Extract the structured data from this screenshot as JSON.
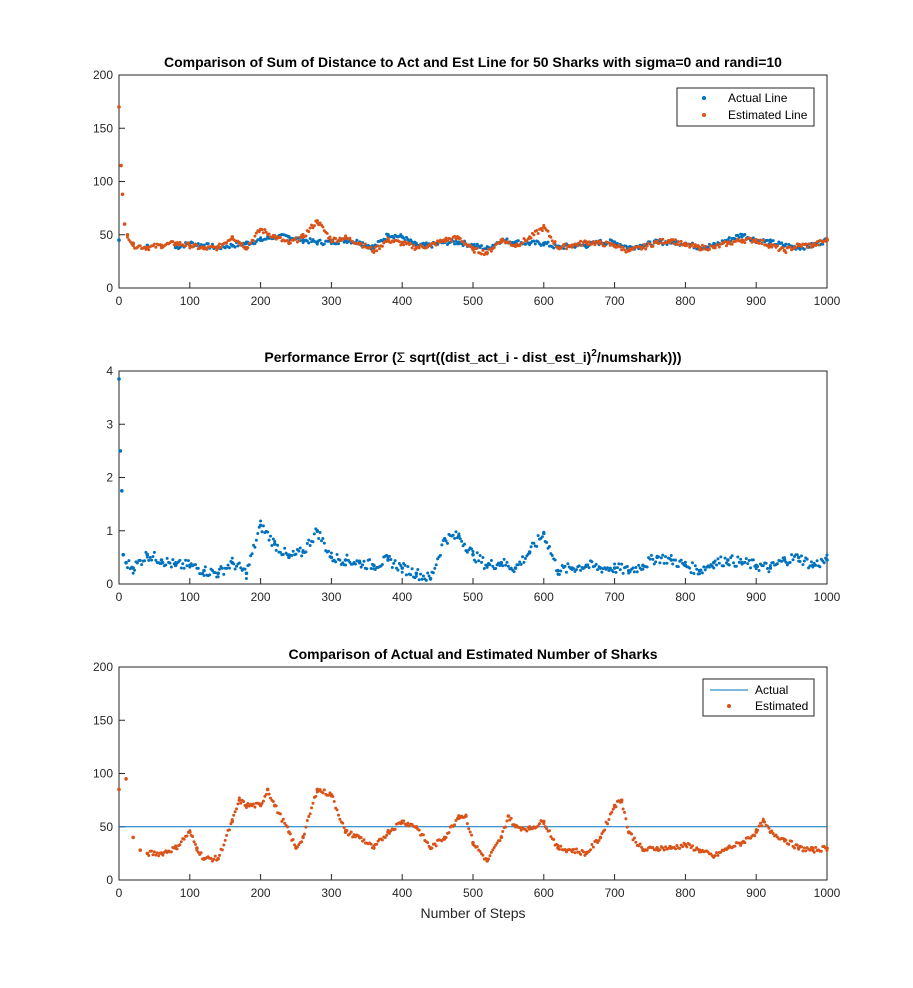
{
  "chart_data": [
    {
      "type": "scatter",
      "title": "Comparison of Sum of Distance to Act and Est Line for 50 Sharks with sigma=0 and randi=10",
      "xlim": [
        0,
        1000
      ],
      "ylim": [
        0,
        200
      ],
      "x_ticks": [
        "0",
        "100",
        "200",
        "300",
        "400",
        "500",
        "600",
        "700",
        "800",
        "900",
        "1000"
      ],
      "y_ticks": [
        "0",
        "50",
        "100",
        "150",
        "200"
      ],
      "legend": "top-right",
      "series": [
        {
          "name": "Actual Line",
          "color": "#0072BD",
          "points": [
            [
              0,
              45
            ],
            [
              20,
              42
            ],
            [
              40,
              40
            ],
            [
              60,
              40
            ],
            [
              80,
              38
            ],
            [
              100,
              42
            ],
            [
              120,
              40
            ],
            [
              140,
              38
            ],
            [
              160,
              40
            ],
            [
              180,
              42
            ],
            [
              200,
              45
            ],
            [
              220,
              48
            ],
            [
              240,
              48
            ],
            [
              260,
              45
            ],
            [
              280,
              43
            ],
            [
              300,
              43
            ],
            [
              320,
              45
            ],
            [
              340,
              43
            ],
            [
              360,
              38
            ],
            [
              380,
              50
            ],
            [
              400,
              48
            ],
            [
              420,
              40
            ],
            [
              440,
              40
            ],
            [
              460,
              43
            ],
            [
              480,
              43
            ],
            [
              500,
              40
            ],
            [
              520,
              37
            ],
            [
              540,
              45
            ],
            [
              560,
              43
            ],
            [
              580,
              42
            ],
            [
              600,
              42
            ],
            [
              620,
              38
            ],
            [
              640,
              40
            ],
            [
              660,
              40
            ],
            [
              680,
              43
            ],
            [
              700,
              43
            ],
            [
              720,
              38
            ],
            [
              740,
              40
            ],
            [
              760,
              43
            ],
            [
              780,
              43
            ],
            [
              800,
              42
            ],
            [
              820,
              38
            ],
            [
              840,
              40
            ],
            [
              860,
              45
            ],
            [
              880,
              50
            ],
            [
              900,
              45
            ],
            [
              920,
              43
            ],
            [
              940,
              40
            ],
            [
              960,
              38
            ],
            [
              980,
              40
            ],
            [
              1000,
              45
            ]
          ]
        },
        {
          "name": "Estimated Line",
          "color": "#D95319",
          "points": [
            [
              0,
              170
            ],
            [
              3,
              115
            ],
            [
              5,
              88
            ],
            [
              8,
              60
            ],
            [
              12,
              50
            ],
            [
              20,
              40
            ],
            [
              40,
              38
            ],
            [
              60,
              40
            ],
            [
              80,
              42
            ],
            [
              100,
              40
            ],
            [
              120,
              37
            ],
            [
              140,
              38
            ],
            [
              160,
              48
            ],
            [
              180,
              38
            ],
            [
              200,
              55
            ],
            [
              220,
              48
            ],
            [
              240,
              42
            ],
            [
              260,
              48
            ],
            [
              280,
              63
            ],
            [
              300,
              45
            ],
            [
              320,
              47
            ],
            [
              340,
              42
            ],
            [
              360,
              35
            ],
            [
              380,
              45
            ],
            [
              400,
              42
            ],
            [
              420,
              38
            ],
            [
              440,
              40
            ],
            [
              460,
              45
            ],
            [
              480,
              47
            ],
            [
              500,
              36
            ],
            [
              520,
              33
            ],
            [
              540,
              45
            ],
            [
              560,
              40
            ],
            [
              580,
              47
            ],
            [
              600,
              57
            ],
            [
              620,
              38
            ],
            [
              640,
              40
            ],
            [
              660,
              43
            ],
            [
              680,
              42
            ],
            [
              700,
              40
            ],
            [
              720,
              35
            ],
            [
              740,
              38
            ],
            [
              760,
              43
            ],
            [
              780,
              45
            ],
            [
              800,
              40
            ],
            [
              820,
              38
            ],
            [
              840,
              38
            ],
            [
              860,
              42
            ],
            [
              880,
              45
            ],
            [
              900,
              45
            ],
            [
              920,
              40
            ],
            [
              940,
              35
            ],
            [
              960,
              40
            ],
            [
              980,
              40
            ],
            [
              1000,
              45
            ]
          ]
        }
      ]
    },
    {
      "type": "scatter",
      "title_parts": [
        "Performance Error (",
        "Σ",
        " sqrt((dist_act_i - dist_est_i)",
        "2",
        "/numshark)))"
      ],
      "xlim": [
        0,
        1000
      ],
      "ylim": [
        0,
        4
      ],
      "x_ticks": [
        "0",
        "100",
        "200",
        "300",
        "400",
        "500",
        "600",
        "700",
        "800",
        "900",
        "1000"
      ],
      "y_ticks": [
        "0",
        "1",
        "2",
        "3",
        "4"
      ],
      "series": [
        {
          "color": "#0072BD",
          "points": [
            [
              0,
              3.85
            ],
            [
              2,
              2.5
            ],
            [
              4,
              1.75
            ],
            [
              6,
              0.55
            ],
            [
              10,
              0.4
            ],
            [
              20,
              0.3
            ],
            [
              40,
              0.55
            ],
            [
              60,
              0.45
            ],
            [
              80,
              0.35
            ],
            [
              100,
              0.35
            ],
            [
              120,
              0.25
            ],
            [
              140,
              0.2
            ],
            [
              160,
              0.4
            ],
            [
              180,
              0.2
            ],
            [
              200,
              1.1
            ],
            [
              220,
              0.75
            ],
            [
              240,
              0.5
            ],
            [
              260,
              0.6
            ],
            [
              280,
              1.0
            ],
            [
              300,
              0.5
            ],
            [
              320,
              0.45
            ],
            [
              340,
              0.4
            ],
            [
              360,
              0.35
            ],
            [
              380,
              0.45
            ],
            [
              400,
              0.3
            ],
            [
              420,
              0.2
            ],
            [
              440,
              0.1
            ],
            [
              460,
              0.85
            ],
            [
              480,
              0.9
            ],
            [
              500,
              0.55
            ],
            [
              520,
              0.35
            ],
            [
              540,
              0.4
            ],
            [
              560,
              0.3
            ],
            [
              580,
              0.6
            ],
            [
              600,
              0.95
            ],
            [
              620,
              0.25
            ],
            [
              640,
              0.3
            ],
            [
              660,
              0.35
            ],
            [
              680,
              0.3
            ],
            [
              700,
              0.3
            ],
            [
              720,
              0.25
            ],
            [
              740,
              0.35
            ],
            [
              760,
              0.5
            ],
            [
              780,
              0.45
            ],
            [
              800,
              0.35
            ],
            [
              820,
              0.25
            ],
            [
              840,
              0.4
            ],
            [
              860,
              0.45
            ],
            [
              880,
              0.4
            ],
            [
              900,
              0.35
            ],
            [
              920,
              0.3
            ],
            [
              940,
              0.45
            ],
            [
              960,
              0.5
            ],
            [
              980,
              0.35
            ],
            [
              1000,
              0.45
            ]
          ]
        }
      ]
    },
    {
      "type": "scatter",
      "title": "Comparison of Actual and Estimated Number of Sharks",
      "xlabel": "Number of Steps",
      "xlim": [
        0,
        1000
      ],
      "ylim": [
        0,
        200
      ],
      "x_ticks": [
        "0",
        "100",
        "200",
        "300",
        "400",
        "500",
        "600",
        "700",
        "800",
        "900",
        "1000"
      ],
      "y_ticks": [
        "0",
        "50",
        "100",
        "150",
        "200"
      ],
      "legend": "top-right",
      "series": [
        {
          "name": "Actual",
          "color": "#0072BD",
          "style": "line",
          "points": [
            [
              0,
              50
            ],
            [
              1000,
              50
            ]
          ]
        },
        {
          "name": "Estimated",
          "color": "#D95319",
          "style": "dots",
          "points": [
            [
              0,
              85
            ],
            [
              10,
              95
            ],
            [
              20,
              40
            ],
            [
              30,
              28
            ],
            [
              40,
              25
            ],
            [
              60,
              25
            ],
            [
              80,
              30
            ],
            [
              100,
              45
            ],
            [
              110,
              30
            ],
            [
              120,
              20
            ],
            [
              140,
              20
            ],
            [
              160,
              55
            ],
            [
              170,
              75
            ],
            [
              180,
              70
            ],
            [
              200,
              70
            ],
            [
              210,
              85
            ],
            [
              220,
              70
            ],
            [
              240,
              45
            ],
            [
              250,
              30
            ],
            [
              260,
              40
            ],
            [
              280,
              85
            ],
            [
              300,
              80
            ],
            [
              320,
              45
            ],
            [
              340,
              40
            ],
            [
              360,
              30
            ],
            [
              380,
              45
            ],
            [
              400,
              55
            ],
            [
              420,
              50
            ],
            [
              440,
              30
            ],
            [
              460,
              40
            ],
            [
              480,
              60
            ],
            [
              490,
              60
            ],
            [
              500,
              35
            ],
            [
              520,
              18
            ],
            [
              540,
              40
            ],
            [
              550,
              60
            ],
            [
              560,
              50
            ],
            [
              580,
              48
            ],
            [
              600,
              55
            ],
            [
              620,
              30
            ],
            [
              640,
              28
            ],
            [
              660,
              25
            ],
            [
              680,
              40
            ],
            [
              700,
              70
            ],
            [
              710,
              75
            ],
            [
              720,
              45
            ],
            [
              740,
              28
            ],
            [
              760,
              30
            ],
            [
              780,
              30
            ],
            [
              800,
              33
            ],
            [
              820,
              28
            ],
            [
              840,
              22
            ],
            [
              860,
              30
            ],
            [
              880,
              35
            ],
            [
              900,
              45
            ],
            [
              910,
              55
            ],
            [
              920,
              45
            ],
            [
              940,
              38
            ],
            [
              960,
              30
            ],
            [
              980,
              28
            ],
            [
              1000,
              30
            ]
          ]
        }
      ]
    }
  ]
}
